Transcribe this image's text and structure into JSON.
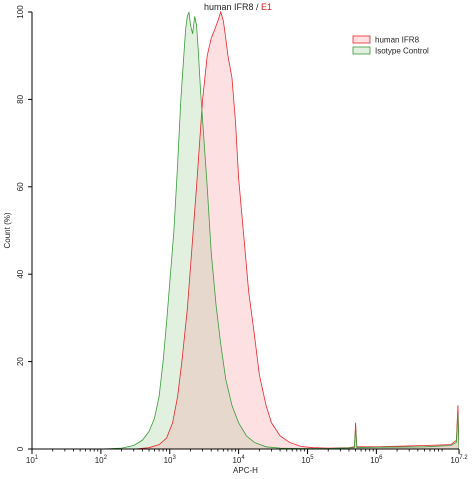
{
  "chart_data": {
    "type": "area",
    "title": "human IFR8",
    "title_separator": "/",
    "title_gate": "E1",
    "xlabel": "APC-H",
    "ylabel": "Count (%)",
    "x_scale": "log",
    "xlim": [
      10,
      15848932
    ],
    "ylim": [
      0,
      100
    ],
    "x_ticks": [
      {
        "value": 10,
        "base": "10",
        "exp": "1"
      },
      {
        "value": 100,
        "base": "10",
        "exp": "2"
      },
      {
        "value": 1000,
        "base": "10",
        "exp": "3"
      },
      {
        "value": 10000,
        "base": "10",
        "exp": "4"
      },
      {
        "value": 100000,
        "base": "10",
        "exp": "5"
      },
      {
        "value": 1000000,
        "base": "10",
        "exp": "6"
      },
      {
        "value": 15848932,
        "base": "10",
        "exp": "7.2"
      }
    ],
    "y_ticks": [
      0,
      20,
      40,
      60,
      80,
      100
    ],
    "legend_position": "top-right",
    "colors": {
      "human_line": "#e8252b",
      "human_fill": "#fde0e2",
      "isotype_line": "#3a9a3a",
      "isotype_fill": "#e2f0df",
      "overlap_fill": "#e6d8cc",
      "axis": "#000000"
    },
    "series": [
      {
        "name": "human IFR8",
        "points": [
          [
            10,
            0
          ],
          [
            100,
            0
          ],
          [
            316,
            0
          ],
          [
            500,
            0.3
          ],
          [
            700,
            1
          ],
          [
            900,
            2.5
          ],
          [
            1100,
            6
          ],
          [
            1300,
            12
          ],
          [
            1500,
            20
          ],
          [
            1800,
            32
          ],
          [
            2100,
            46
          ],
          [
            2500,
            62
          ],
          [
            3000,
            80
          ],
          [
            3500,
            90
          ],
          [
            4000,
            94
          ],
          [
            4500,
            96
          ],
          [
            5000,
            98
          ],
          [
            5500,
            100
          ],
          [
            6000,
            98
          ],
          [
            6500,
            94
          ],
          [
            7000,
            90
          ],
          [
            8000,
            85
          ],
          [
            9000,
            75
          ],
          [
            10000,
            62
          ],
          [
            12000,
            48
          ],
          [
            14000,
            36
          ],
          [
            17000,
            26
          ],
          [
            20000,
            17
          ],
          [
            25000,
            10
          ],
          [
            30000,
            6
          ],
          [
            40000,
            3
          ],
          [
            55000,
            1.5
          ],
          [
            80000,
            0.6
          ],
          [
            120000,
            0.3
          ],
          [
            200000,
            0.2
          ],
          [
            400000,
            0.3
          ],
          [
            480000,
            0.5
          ],
          [
            500000,
            6
          ],
          [
            520000,
            0.5
          ],
          [
            1000000,
            0.5
          ],
          [
            5000000,
            0.8
          ],
          [
            12000000,
            1
          ],
          [
            14500000,
            2
          ],
          [
            15300000,
            10
          ],
          [
            15848932,
            0
          ]
        ]
      },
      {
        "name": "Isotype Control",
        "points": [
          [
            10,
            0
          ],
          [
            100,
            0
          ],
          [
            200,
            0.2
          ],
          [
            300,
            0.8
          ],
          [
            400,
            2
          ],
          [
            500,
            4
          ],
          [
            600,
            7
          ],
          [
            700,
            12
          ],
          [
            800,
            20
          ],
          [
            900,
            29
          ],
          [
            1000,
            38
          ],
          [
            1150,
            50
          ],
          [
            1300,
            65
          ],
          [
            1450,
            80
          ],
          [
            1600,
            90
          ],
          [
            1700,
            96
          ],
          [
            1800,
            99
          ],
          [
            1900,
            100
          ],
          [
            2000,
            97
          ],
          [
            2150,
            95
          ],
          [
            2300,
            99
          ],
          [
            2450,
            97
          ],
          [
            2600,
            91
          ],
          [
            2800,
            82
          ],
          [
            3100,
            72
          ],
          [
            3500,
            60
          ],
          [
            4000,
            45
          ],
          [
            4700,
            33
          ],
          [
            5500,
            24
          ],
          [
            6500,
            16
          ],
          [
            8000,
            10
          ],
          [
            10000,
            6
          ],
          [
            13000,
            3
          ],
          [
            17000,
            1.5
          ],
          [
            25000,
            0.5
          ],
          [
            40000,
            0.2
          ],
          [
            80000,
            0.1
          ],
          [
            200000,
            0.1
          ],
          [
            480000,
            0.3
          ],
          [
            500000,
            5
          ],
          [
            520000,
            0.3
          ],
          [
            1000000,
            0.4
          ],
          [
            5000000,
            0.5
          ],
          [
            12000000,
            0.8
          ],
          [
            14500000,
            1.5
          ],
          [
            15300000,
            8
          ],
          [
            15848932,
            0
          ]
        ]
      }
    ]
  }
}
